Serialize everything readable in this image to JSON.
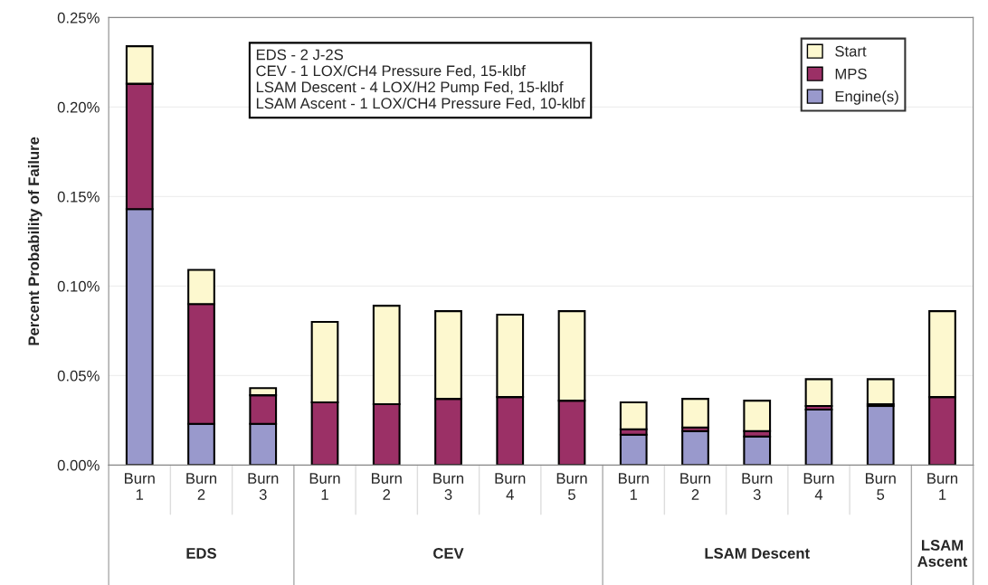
{
  "chart_data": {
    "type": "bar",
    "stacked": true,
    "ylabel": "Percent Probability of Failure",
    "categories": [
      "Burn\n1",
      "Burn\n2",
      "Burn\n3",
      "Burn\n1",
      "Burn\n2",
      "Burn\n3",
      "Burn\n4",
      "Burn\n5",
      "Burn\n1",
      "Burn\n2",
      "Burn\n3",
      "Burn\n4",
      "Burn\n5",
      "Burn\n1"
    ],
    "series": [
      {
        "name": "Engine(s)",
        "color": "#9999cc",
        "values": [
          0.143,
          0.023,
          0.023,
          0,
          0,
          0,
          0,
          0,
          0.017,
          0.019,
          0.016,
          0.031,
          0.033,
          null
        ]
      },
      {
        "name": "MPS",
        "color": "#9b3066",
        "values": [
          0.07,
          0.067,
          0.016,
          0.035,
          0.034,
          0.037,
          0.038,
          0.036,
          0.003,
          0.002,
          0.003,
          0.002,
          0.001,
          0.038
        ]
      },
      {
        "name": "Start",
        "color": "#fdf8cf",
        "values": [
          0.021,
          0.019,
          0.004,
          0.045,
          0.055,
          0.049,
          0.046,
          0.05,
          0.015,
          0.016,
          0.017,
          0.015,
          0.014,
          0.048
        ]
      }
    ],
    "ylim": [
      0,
      0.25
    ],
    "yticks": [
      {
        "value": 0,
        "label": "0.00%"
      },
      {
        "value": 0.05,
        "label": "0.05%"
      },
      {
        "value": 0.1,
        "label": "0.10%"
      },
      {
        "value": 0.15,
        "label": "0.15%"
      },
      {
        "value": 0.2,
        "label": "0.20%"
      },
      {
        "value": 0.25,
        "label": "0.25%"
      }
    ],
    "grid": "y",
    "legend": "top right",
    "annotations": [
      "EDS - 2 J-2S\nCEV - 1 LOX/CH4 Pressure Fed, 15-klbf\nLSAM Descent - 4 LOX/H2 Pump Fed, 15-klbf\nLSAM Ascent - 1 LOX/CH4 Pressure Fed, 10-klbf",
      "EDS",
      "CEV",
      "LSAM Descent",
      "LSAM\nAscent"
    ]
  }
}
